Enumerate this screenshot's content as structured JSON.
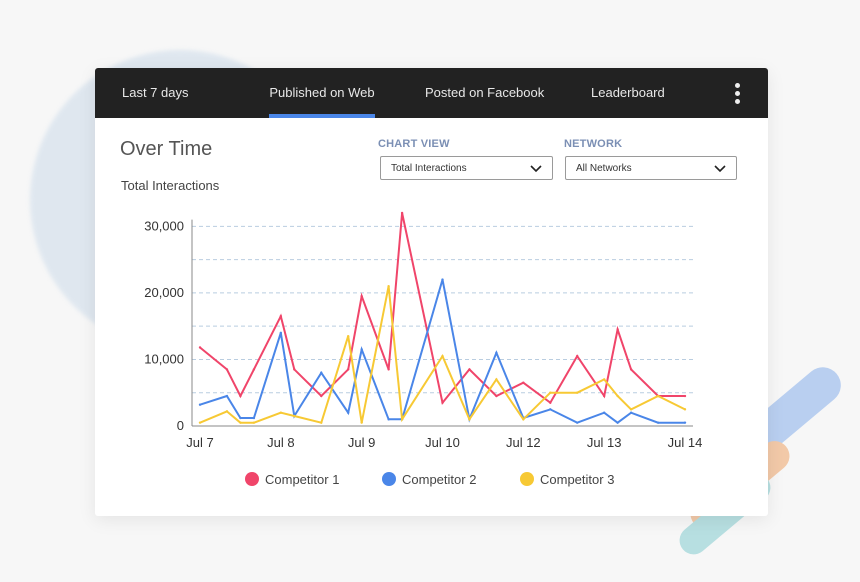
{
  "tabs": [
    "Last 7 days",
    "Published on Web",
    "Posted on Facebook",
    "Leaderboard"
  ],
  "active_tab_index": 1,
  "menu_icon": "kebab-menu-icon",
  "panel": {
    "title": "Over Time",
    "subtitle": "Total Interactions"
  },
  "controls": {
    "chart_view": {
      "label": "CHART VIEW",
      "value": "Total Interactions"
    },
    "network": {
      "label": "NETWORK",
      "value": "All Networks"
    }
  },
  "colors": {
    "accent": "#4a86e8",
    "topbar": "#222222",
    "competitor_1": "#f0456a",
    "competitor_2": "#4a86e8",
    "competitor_3": "#f7c934"
  },
  "chart_data": {
    "type": "line",
    "xlabel": "",
    "ylabel": "",
    "ylim": [
      0,
      32000
    ],
    "yticks": [
      0,
      10000,
      20000,
      30000
    ],
    "ytick_labels": [
      "0",
      "10,000",
      "20,000",
      "30,000"
    ],
    "xtick_labels": [
      "Jul 7",
      "Jul 8",
      "Jul 9",
      "Jul 10",
      "Jul 12",
      "Jul 13",
      "Jul 14"
    ],
    "xtick_positions": [
      0,
      3,
      6,
      9,
      12,
      15,
      18
    ],
    "x": [
      0,
      1,
      1.5,
      2,
      3,
      3.5,
      4.5,
      5.5,
      6,
      7,
      7.5,
      9,
      10,
      11,
      12,
      13,
      14,
      15,
      15.5,
      16,
      17,
      18
    ],
    "grid": "horizontal-dashed",
    "legend_position": "bottom",
    "series": [
      {
        "name": "Competitor 1",
        "color": "#f0456a",
        "values": [
          11800,
          8500,
          4500,
          8500,
          16500,
          8500,
          4500,
          8500,
          19500,
          8500,
          32000,
          3500,
          8500,
          4500,
          6500,
          3500,
          10500,
          4500,
          14500,
          8500,
          4500,
          4500
        ]
      },
      {
        "name": "Competitor 2",
        "color": "#4a86e8",
        "values": [
          3200,
          4500,
          1200,
          1200,
          14000,
          1500,
          8000,
          2000,
          11500,
          1000,
          1000,
          22000,
          1000,
          11000,
          1200,
          2500,
          500,
          2000,
          500,
          2000,
          500,
          500
        ]
      },
      {
        "name": "Competitor 3",
        "color": "#f7c934",
        "values": [
          500,
          2200,
          500,
          500,
          2000,
          1500,
          500,
          13500,
          500,
          21000,
          1000,
          10500,
          1000,
          7000,
          1000,
          5000,
          5000,
          7000,
          4500,
          2500,
          4500,
          2500
        ]
      }
    ]
  }
}
